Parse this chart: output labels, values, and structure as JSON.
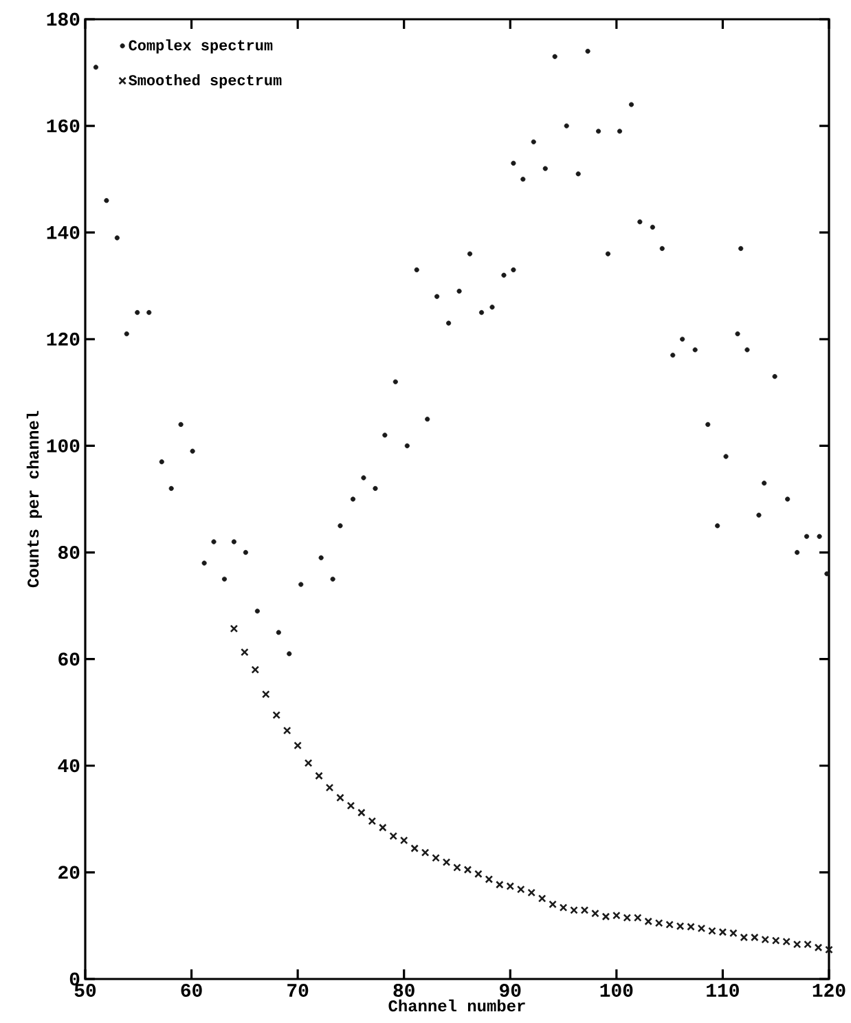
{
  "chart_data": {
    "type": "scatter",
    "xlabel": "Channel number",
    "ylabel": "Counts per channel",
    "xlim": [
      50,
      120
    ],
    "xticks": [
      50,
      60,
      70,
      80,
      90,
      100,
      110,
      120
    ],
    "ylim": [
      0,
      180
    ],
    "yticks": [
      0,
      20,
      40,
      60,
      80,
      100,
      120,
      140,
      160,
      180
    ],
    "grid": false,
    "legend": "top left",
    "series": [
      {
        "name": "Complex spectrum",
        "color": "#1a1a1a",
        "marker": "circle",
        "x": [
          51.0,
          52.0,
          53.0,
          53.9,
          54.9,
          56.0,
          57.2,
          58.1,
          59.0,
          60.1,
          61.2,
          62.1,
          63.1,
          64.0,
          65.1,
          66.2,
          68.2,
          69.2,
          70.3,
          72.2,
          73.3,
          74.0,
          75.2,
          76.2,
          77.3,
          78.2,
          79.2,
          80.3,
          81.2,
          82.2,
          83.1,
          84.2,
          85.2,
          86.2,
          87.3,
          88.3,
          89.4,
          90.3,
          90.3,
          91.2,
          92.2,
          93.3,
          94.2,
          95.3,
          96.4,
          97.3,
          98.3,
          99.2,
          100.3,
          101.4,
          102.2,
          103.4,
          104.3,
          105.3,
          106.2,
          107.4,
          108.6,
          109.5,
          110.3,
          111.4,
          111.7,
          112.3,
          113.4,
          113.9,
          114.9,
          116.1,
          117.0,
          117.9,
          119.1,
          119.8
        ],
        "values": [
          171,
          146,
          139,
          121,
          125,
          125,
          97,
          92,
          104,
          99,
          78,
          82,
          75,
          82,
          80,
          69,
          65,
          61,
          74,
          79,
          75,
          85,
          90,
          94,
          92,
          102,
          112,
          100,
          133,
          105,
          128,
          123,
          129,
          136,
          125,
          126,
          132,
          133,
          153,
          150,
          157,
          152,
          173,
          160,
          151,
          174,
          159,
          136,
          159,
          164,
          142,
          141,
          137,
          117,
          120,
          118,
          104,
          85,
          98,
          121,
          137,
          118,
          87,
          93,
          113,
          90,
          80,
          83,
          83,
          76
        ]
      },
      {
        "name": "Smoothed spectrum",
        "color": "#1a1a1a",
        "marker": "cross",
        "x": [
          64,
          65,
          66,
          67,
          68,
          69,
          70,
          71,
          72,
          73,
          74,
          75,
          76,
          77,
          78,
          79,
          80,
          81,
          82,
          83,
          84,
          85,
          86,
          87,
          88,
          89,
          90,
          91,
          92,
          93,
          94,
          95,
          96,
          97,
          98,
          99,
          100,
          101,
          102,
          103,
          104,
          105,
          106,
          107,
          108,
          109,
          110,
          111,
          112,
          113,
          114,
          115,
          116,
          117,
          118,
          119,
          120
        ],
        "values": [
          65.7,
          61.3,
          58,
          53.4,
          49.5,
          46.6,
          43.8,
          40.5,
          38.1,
          35.9,
          34,
          32.5,
          31.2,
          29.6,
          28.4,
          26.8,
          26,
          24.5,
          23.7,
          22.7,
          21.9,
          20.9,
          20.5,
          19.7,
          18.7,
          17.7,
          17.4,
          16.8,
          16.2,
          15.1,
          14.0,
          13.4,
          12.9,
          12.9,
          12.3,
          11.7,
          11.9,
          11.5,
          11.5,
          10.8,
          10.5,
          10.2,
          9.9,
          9.8,
          9.5,
          9.0,
          8.8,
          8.6,
          7.8,
          7.8,
          7.4,
          7.2,
          7.0,
          6.5,
          6.5,
          5.9,
          5.5
        ]
      }
    ]
  }
}
